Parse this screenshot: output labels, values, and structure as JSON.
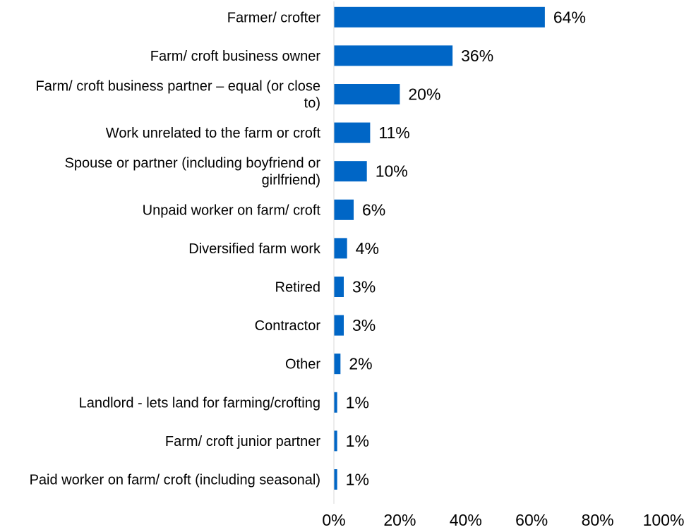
{
  "chart_data": {
    "type": "bar",
    "orientation": "horizontal",
    "categories": [
      [
        "Farmer/ crofter"
      ],
      [
        "Farm/ croft business owner"
      ],
      [
        "Farm/ croft business partner – equal (or close",
        "to)"
      ],
      [
        "Work unrelated to the farm or croft"
      ],
      [
        "Spouse or partner (including boyfriend or",
        "girlfriend)"
      ],
      [
        "Unpaid worker on farm/ croft"
      ],
      [
        "Diversified farm work"
      ],
      [
        "Retired"
      ],
      [
        "Contractor"
      ],
      [
        "Other"
      ],
      [
        "Landlord - lets land for farming/crofting"
      ],
      [
        "Farm/ croft junior partner"
      ],
      [
        "Paid worker on farm/ croft (including seasonal)"
      ]
    ],
    "values": [
      64,
      36,
      20,
      11,
      10,
      6,
      4,
      3,
      3,
      2,
      1,
      1,
      1
    ],
    "data_labels": [
      "64%",
      "36%",
      "20%",
      "11%",
      "10%",
      "6%",
      "4%",
      "3%",
      "3%",
      "2%",
      "1%",
      "1%",
      "1%"
    ],
    "xlim": [
      0,
      100
    ],
    "x_ticks": [
      0,
      20,
      40,
      60,
      80,
      100
    ],
    "x_tick_labels": [
      "0%",
      "20%",
      "40%",
      "60%",
      "80%",
      "100%"
    ],
    "bar_color": "#0066c6",
    "axis_color": "#d9d9d9",
    "title": "",
    "xlabel": "",
    "ylabel": "",
    "grid": false,
    "legend": "none"
  }
}
